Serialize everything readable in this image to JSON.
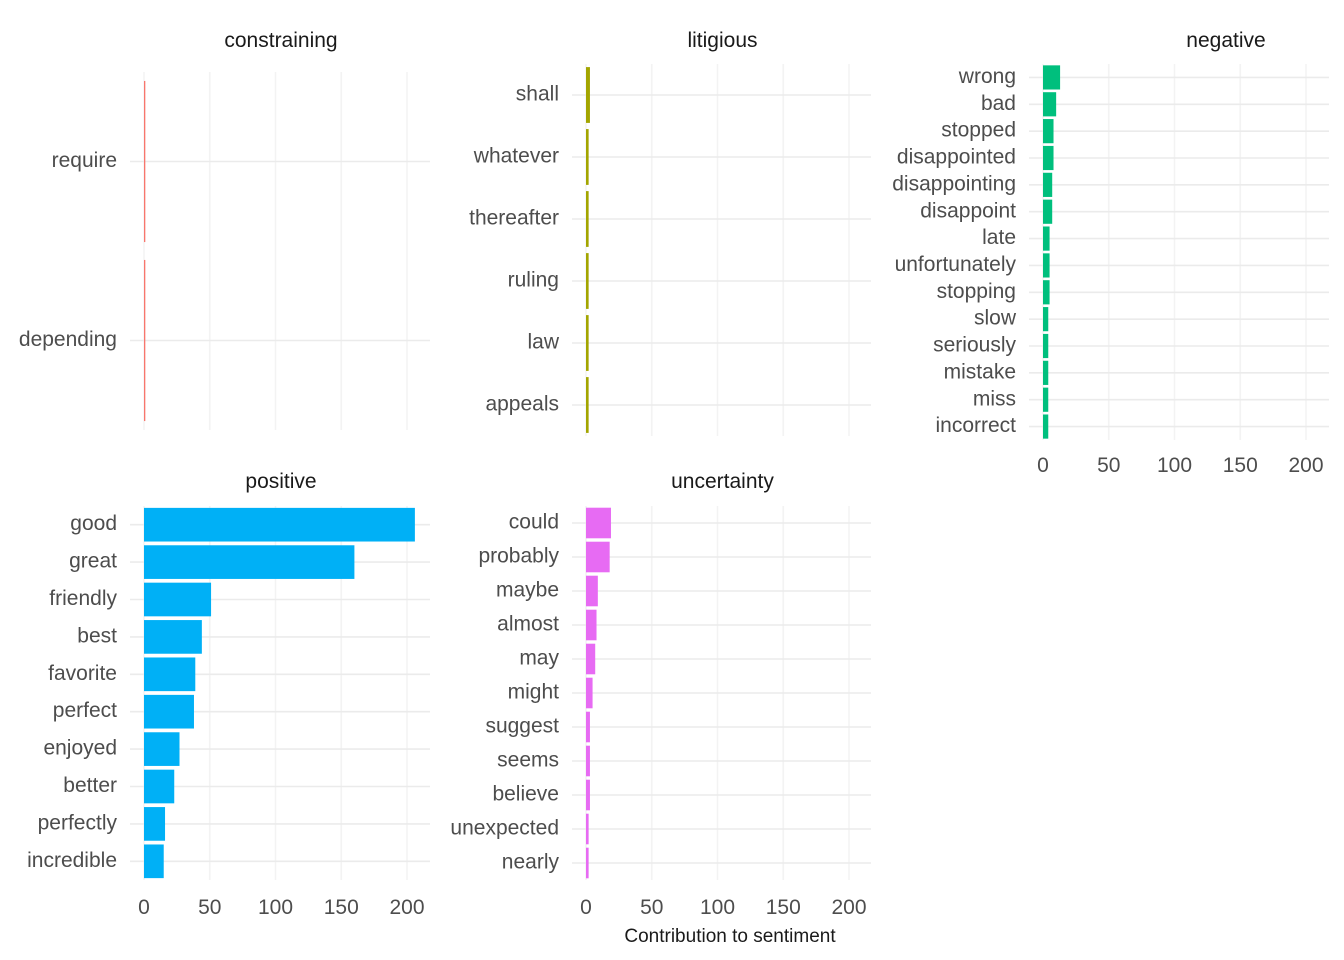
{
  "chart_data": {
    "type": "bar",
    "orientation": "horizontal",
    "layout": "facet-wrap, 3 columns x 2 rows, free y scales",
    "xlabel": "Contribution to sentiment",
    "xlim": [
      0,
      215
    ],
    "xticks": [
      0,
      50,
      100,
      150,
      200
    ],
    "grid": true,
    "legend": "none",
    "facets": [
      {
        "name": "constraining",
        "color": "#F8766D",
        "categories": [
          "require",
          "depending"
        ],
        "values": [
          1,
          1
        ]
      },
      {
        "name": "litigious",
        "color": "#A3A500",
        "categories": [
          "shall",
          "whatever",
          "thereafter",
          "ruling",
          "law",
          "appeals"
        ],
        "values": [
          3,
          2,
          2,
          2,
          2,
          2
        ]
      },
      {
        "name": "negative",
        "color": "#00BF7D",
        "categories": [
          "wrong",
          "bad",
          "stopped",
          "disappointed",
          "disappointing",
          "disappoint",
          "late",
          "unfortunately",
          "stopping",
          "slow",
          "seriously",
          "mistake",
          "miss",
          "incorrect"
        ],
        "values": [
          13,
          10,
          8,
          8,
          7,
          7,
          5,
          5,
          5,
          4,
          4,
          4,
          4,
          4
        ]
      },
      {
        "name": "positive",
        "color": "#00B0F6",
        "categories": [
          "good",
          "great",
          "friendly",
          "best",
          "favorite",
          "perfect",
          "enjoyed",
          "better",
          "perfectly",
          "incredible"
        ],
        "values": [
          206,
          160,
          51,
          44,
          39,
          38,
          27,
          23,
          16,
          15
        ]
      },
      {
        "name": "uncertainty",
        "color": "#E76BF3",
        "categories": [
          "could",
          "probably",
          "maybe",
          "almost",
          "may",
          "might",
          "suggest",
          "seems",
          "believe",
          "unexpected",
          "nearly"
        ],
        "values": [
          19,
          18,
          9,
          8,
          7,
          5,
          3,
          3,
          3,
          2,
          2
        ]
      }
    ]
  }
}
